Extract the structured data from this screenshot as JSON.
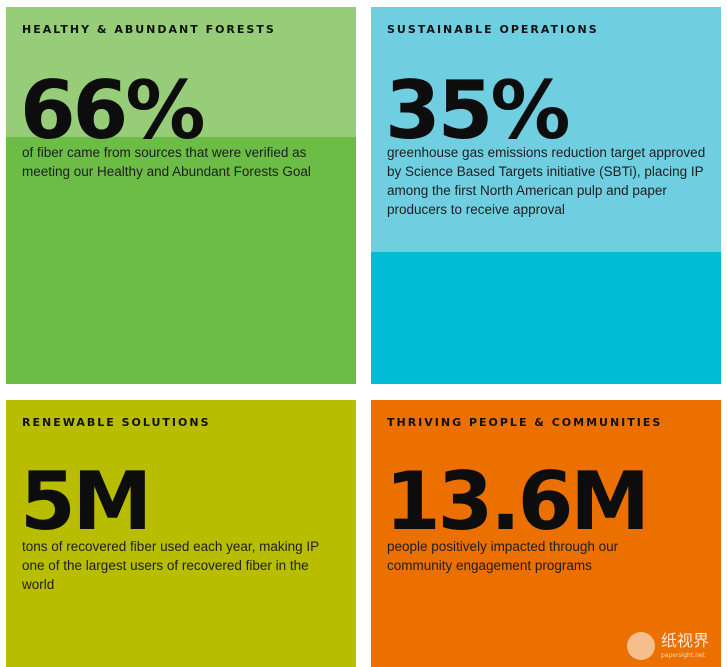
{
  "colors": {
    "forest_band": "#97cd79",
    "forest_main": "#6cbd45",
    "operations_band": "#6fcfe0",
    "operations_main": "#00bcd4",
    "renewable": "#b9bd00",
    "people": "#eb7000",
    "text": "#111111"
  },
  "cards": [
    {
      "heading": "HEALTHY & ABUNDANT FORESTS",
      "stat": "66%",
      "description": "of fiber came from sources that were verified as meeting our Healthy and Abundant Forests Goal"
    },
    {
      "heading": "SUSTAINABLE OPERATIONS",
      "stat": "35%",
      "description": "greenhouse gas emissions reduction target approved by Science Based Targets initiative (SBTi), placing IP among the first North American pulp and paper producers to receive approval"
    },
    {
      "heading": "RENEWABLE SOLUTIONS",
      "stat": "5M",
      "description": "tons of recovered fiber used each year, making IP one of the largest users of recovered fiber in the world"
    },
    {
      "heading": "THRIVING PEOPLE & COMMUNITIES",
      "stat": "13.6M",
      "description": "people positively impacted through our community engagement programs"
    }
  ],
  "watermark": {
    "text": "纸视界",
    "subtext": "papersight.net"
  }
}
